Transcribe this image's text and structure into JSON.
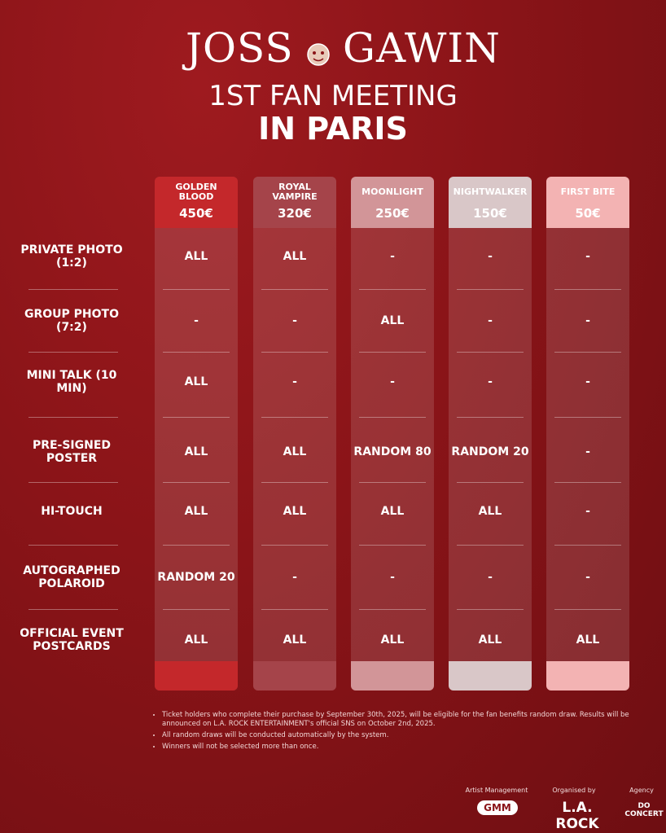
{
  "header": {
    "name_left": "JOSS",
    "name_right": "GAWIN",
    "subtitle": "1ST FAN MEETING",
    "location": "IN PARIS"
  },
  "tiers": [
    {
      "name": "GOLDEN BLOOD",
      "price": "450€"
    },
    {
      "name": "ROYAL VAMPIRE",
      "price": "320€"
    },
    {
      "name": "MOONLIGHT",
      "price": "250€"
    },
    {
      "name": "NIGHTWALKER",
      "price": "150€"
    },
    {
      "name": "FIRST BITE",
      "price": "50€"
    }
  ],
  "rows": [
    {
      "label": "PRIVATE PHOTO (1:2)",
      "cells": [
        "ALL",
        "ALL",
        "-",
        "-",
        "-"
      ]
    },
    {
      "label": "GROUP PHOTO (7:2)",
      "cells": [
        "-",
        "-",
        "ALL",
        "-",
        "-"
      ]
    },
    {
      "label": "MINI TALK (10 MIN)",
      "cells": [
        "ALL",
        "-",
        "-",
        "-",
        "-"
      ]
    },
    {
      "label": "PRE-SIGNED POSTER",
      "cells": [
        "ALL",
        "ALL",
        "RANDOM 80",
        "RANDOM 20",
        "-"
      ]
    },
    {
      "label": "HI-TOUCH",
      "cells": [
        "ALL",
        "ALL",
        "ALL",
        "ALL",
        "-"
      ]
    },
    {
      "label": "AUTOGRAPHED POLAROID",
      "cells": [
        "RANDOM 20",
        "-",
        "-",
        "-",
        "-"
      ]
    },
    {
      "label": "OFFICIAL EVENT POSTCARDS",
      "cells": [
        "ALL",
        "ALL",
        "ALL",
        "ALL",
        "ALL"
      ]
    }
  ],
  "notes": [
    "Ticket holders who complete their purchase by September 30th, 2025, will be eligible for the fan benefits random draw. Results will be announced on L.A. ROCK ENTERTAINMENT's official SNS on October 2nd, 2025.",
    "All random draws will be conducted automatically by the system.",
    "Winners will not be selected more than once."
  ],
  "footer": {
    "labels": [
      "Artist Management",
      "Organised by",
      "Agency"
    ],
    "logos": [
      "GMM",
      "L.A. ROCK",
      "DO CONCERT"
    ]
  }
}
